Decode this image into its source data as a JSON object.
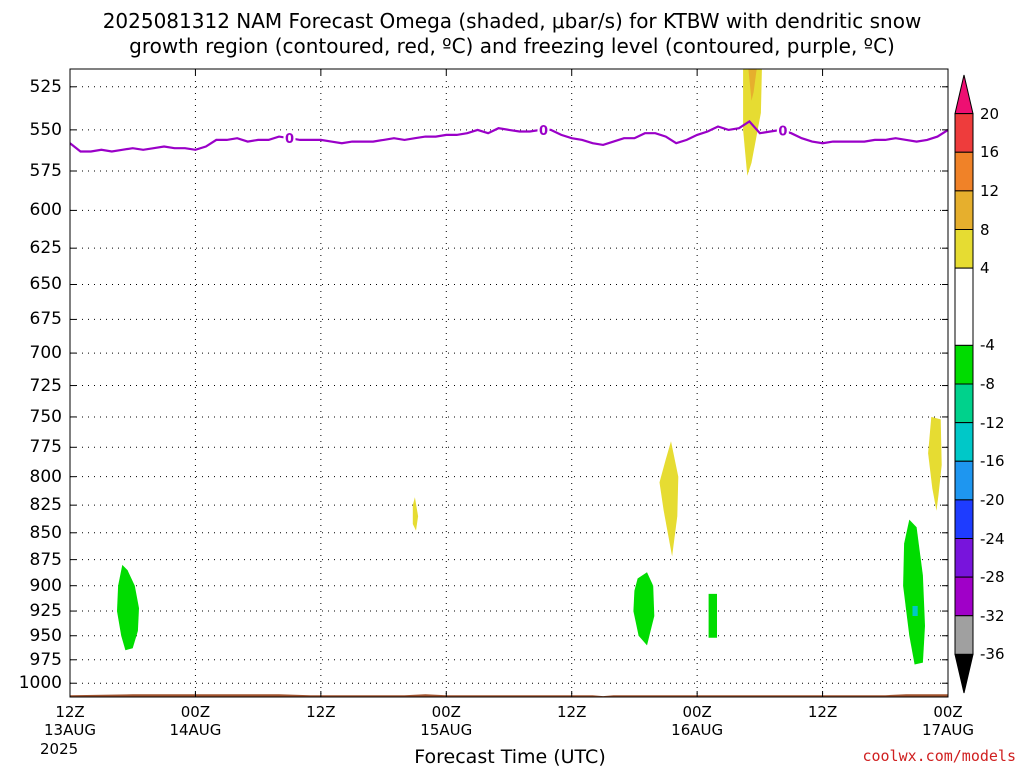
{
  "title": {
    "line1": "2025081312 NAM Forecast Omega (shaded, μbar/s) for KTBW with dendritic snow",
    "line2": "growth region (contoured, red, ºC) and freezing level (contoured, purple, ºC)"
  },
  "chart_data": {
    "type": "heatmap",
    "title": "2025081312 NAM Forecast Omega (shaded, μbar/s) for KTBW with dendritic snow growth region (contoured, red, ºC) and freezing level (contoured, purple, ºC)",
    "xlabel": "Forecast Time (UTC)",
    "x_ticks": [
      {
        "h": 0,
        "top": "12Z",
        "bottom": "13AUG"
      },
      {
        "h": 12,
        "top": "00Z",
        "bottom": "14AUG"
      },
      {
        "h": 24,
        "top": "12Z",
        "bottom": ""
      },
      {
        "h": 36,
        "top": "00Z",
        "bottom": "15AUG"
      },
      {
        "h": 48,
        "top": "12Z",
        "bottom": ""
      },
      {
        "h": 60,
        "top": "00Z",
        "bottom": "16AUG"
      },
      {
        "h": 72,
        "top": "12Z",
        "bottom": ""
      },
      {
        "h": 84,
        "top": "00Z",
        "bottom": "17AUG"
      }
    ],
    "year_label": "2025",
    "xlim": [
      0,
      84
    ],
    "ylabel": "",
    "y_ticks": [
      525,
      550,
      575,
      600,
      625,
      650,
      675,
      700,
      725,
      750,
      775,
      800,
      825,
      850,
      875,
      900,
      925,
      950,
      975,
      1000
    ],
    "ylim": [
      515,
      1015
    ],
    "y_scale": "log",
    "grid": true,
    "colorbar": {
      "labels": [
        "20",
        "16",
        "12",
        "8",
        "4",
        "-4",
        "-8",
        "-12",
        "-16",
        "-20",
        "-24",
        "-28",
        "-32",
        "-36"
      ],
      "bins": [
        {
          "color": "#ee0f72",
          "from": 24,
          "to": 20,
          "shape": "tri-top"
        },
        {
          "color": "#ee3c3c",
          "from": 20,
          "to": 16
        },
        {
          "color": "#f08228",
          "from": 16,
          "to": 12
        },
        {
          "color": "#e6af2d",
          "from": 12,
          "to": 8
        },
        {
          "color": "#e6dc32",
          "from": 8,
          "to": 4
        },
        {
          "color": "#ffffff",
          "from": 4,
          "to": -4
        },
        {
          "color": "#00dc00",
          "from": -4,
          "to": -8
        },
        {
          "color": "#00d28c",
          "from": -8,
          "to": -12
        },
        {
          "color": "#00c8c8",
          "from": -12,
          "to": -16
        },
        {
          "color": "#1e96f0",
          "from": -16,
          "to": -20
        },
        {
          "color": "#1e3cff",
          "from": -20,
          "to": -24
        },
        {
          "color": "#7814dc",
          "from": -24,
          "to": -28
        },
        {
          "color": "#a000c8",
          "from": -28,
          "to": -32
        },
        {
          "color": "#a0a0a0",
          "from": -32,
          "to": -36
        },
        {
          "color": "#000000",
          "from": -36,
          "to": -40,
          "shape": "tri-bottom"
        }
      ]
    },
    "omega_regions": [
      {
        "value": -6,
        "color": "#00dc00",
        "points": [
          [
            5.0,
            880
          ],
          [
            5.5,
            885
          ],
          [
            6.2,
            900
          ],
          [
            6.6,
            922
          ],
          [
            6.5,
            945
          ],
          [
            6.0,
            963
          ],
          [
            5.3,
            965
          ],
          [
            4.9,
            950
          ],
          [
            4.5,
            925
          ],
          [
            4.6,
            900
          ]
        ]
      },
      {
        "value": 5,
        "color": "#e6dc32",
        "points": [
          [
            33.0,
            818
          ],
          [
            33.3,
            835
          ],
          [
            33.1,
            848
          ],
          [
            32.8,
            842
          ],
          [
            32.8,
            825
          ]
        ]
      },
      {
        "value": -6,
        "color": "#00dc00",
        "points": [
          [
            54.3,
            893
          ],
          [
            55.2,
            887
          ],
          [
            55.8,
            900
          ],
          [
            55.9,
            930
          ],
          [
            55.2,
            960
          ],
          [
            54.4,
            950
          ],
          [
            53.9,
            925
          ],
          [
            54.0,
            905
          ]
        ]
      },
      {
        "value": 5,
        "color": "#e6dc32",
        "points": [
          [
            57.5,
            770
          ],
          [
            58.2,
            800
          ],
          [
            58.1,
            835
          ],
          [
            57.6,
            872
          ],
          [
            56.8,
            830
          ],
          [
            56.4,
            805
          ],
          [
            57.0,
            785
          ]
        ]
      },
      {
        "value": -6,
        "color": "#00dc00",
        "points": [
          [
            61.1,
            908
          ],
          [
            61.9,
            908
          ],
          [
            61.9,
            952
          ],
          [
            61.1,
            952
          ]
        ]
      },
      {
        "value": 5,
        "color": "#e6dc32",
        "points": [
          [
            64.4,
            515
          ],
          [
            66.2,
            515
          ],
          [
            66.1,
            540
          ],
          [
            65.2,
            570
          ],
          [
            64.8,
            578
          ],
          [
            64.4,
            550
          ]
        ]
      },
      {
        "value": 10,
        "color": "#e6af2d",
        "points": [
          [
            64.9,
            515
          ],
          [
            65.7,
            515
          ],
          [
            65.4,
            528
          ],
          [
            65.2,
            533
          ]
        ]
      },
      {
        "value": -6,
        "color": "#00dc00",
        "points": [
          [
            80.3,
            838
          ],
          [
            81.0,
            845
          ],
          [
            81.6,
            890
          ],
          [
            81.8,
            940
          ],
          [
            81.6,
            978
          ],
          [
            80.8,
            980
          ],
          [
            80.3,
            950
          ],
          [
            79.7,
            900
          ],
          [
            79.8,
            860
          ]
        ]
      },
      {
        "value": -14,
        "color": "#00c8c8",
        "points": [
          [
            80.6,
            920
          ],
          [
            81.1,
            920
          ],
          [
            81.1,
            930
          ],
          [
            80.6,
            930
          ]
        ]
      },
      {
        "value": 5,
        "color": "#e6dc32",
        "points": [
          [
            82.4,
            750
          ],
          [
            83.3,
            752
          ],
          [
            83.4,
            790
          ],
          [
            83.1,
            815
          ],
          [
            82.9,
            830
          ],
          [
            82.5,
            810
          ],
          [
            82.1,
            780
          ]
        ]
      }
    ],
    "freezing_level": {
      "value": 0,
      "label": "0",
      "label_hours": [
        21,
        45.3,
        68.2
      ],
      "points": [
        [
          0,
          558
        ],
        [
          1,
          563
        ],
        [
          2,
          563
        ],
        [
          3,
          562
        ],
        [
          4,
          563
        ],
        [
          5,
          562
        ],
        [
          6,
          561
        ],
        [
          7,
          562
        ],
        [
          8,
          561
        ],
        [
          9,
          560
        ],
        [
          10,
          561
        ],
        [
          11,
          561
        ],
        [
          12,
          562
        ],
        [
          13,
          560
        ],
        [
          14,
          556
        ],
        [
          15,
          556
        ],
        [
          16,
          555
        ],
        [
          17,
          557
        ],
        [
          18,
          556
        ],
        [
          19,
          556
        ],
        [
          20,
          554
        ],
        [
          21,
          555
        ],
        [
          22,
          556
        ],
        [
          23,
          556
        ],
        [
          24,
          556
        ],
        [
          25,
          557
        ],
        [
          26,
          558
        ],
        [
          27,
          557
        ],
        [
          28,
          557
        ],
        [
          29,
          557
        ],
        [
          30,
          556
        ],
        [
          31,
          555
        ],
        [
          32,
          556
        ],
        [
          33,
          555
        ],
        [
          34,
          554
        ],
        [
          35,
          554
        ],
        [
          36,
          553
        ],
        [
          37,
          553
        ],
        [
          38,
          552
        ],
        [
          39,
          550
        ],
        [
          40,
          552
        ],
        [
          41,
          549
        ],
        [
          42,
          550
        ],
        [
          43,
          551
        ],
        [
          44,
          551
        ],
        [
          45,
          550
        ],
        [
          46,
          550
        ],
        [
          47,
          553
        ],
        [
          48,
          555
        ],
        [
          49,
          556
        ],
        [
          50,
          558
        ],
        [
          51,
          559
        ],
        [
          52,
          557
        ],
        [
          53,
          555
        ],
        [
          54,
          555
        ],
        [
          55,
          552
        ],
        [
          56,
          552
        ],
        [
          57,
          554
        ],
        [
          58,
          558
        ],
        [
          59,
          556
        ],
        [
          60,
          553
        ],
        [
          61,
          551
        ],
        [
          62,
          548
        ],
        [
          63,
          550
        ],
        [
          64,
          549
        ],
        [
          65,
          545
        ],
        [
          66,
          552
        ],
        [
          67,
          551
        ],
        [
          68,
          550
        ],
        [
          69,
          552
        ],
        [
          70,
          555
        ],
        [
          71,
          557
        ],
        [
          72,
          558
        ],
        [
          73,
          557
        ],
        [
          74,
          557
        ],
        [
          75,
          557
        ],
        [
          76,
          557
        ],
        [
          77,
          556
        ],
        [
          78,
          556
        ],
        [
          79,
          555
        ],
        [
          80,
          556
        ],
        [
          81,
          557
        ],
        [
          82,
          556
        ],
        [
          83,
          554
        ],
        [
          84,
          550
        ]
      ]
    },
    "terrain": {
      "color": "#a0522d",
      "base": 1015,
      "top": [
        [
          0,
          1013
        ],
        [
          6,
          1012
        ],
        [
          20,
          1012
        ],
        [
          23,
          1013
        ],
        [
          32,
          1013
        ],
        [
          34,
          1012
        ],
        [
          36,
          1013
        ],
        [
          50,
          1013
        ],
        [
          51,
          1014
        ],
        [
          52,
          1013
        ],
        [
          78,
          1013
        ],
        [
          80,
          1012
        ],
        [
          84,
          1012
        ]
      ]
    }
  },
  "footer": {
    "xlabel": "Forecast Time (UTC)",
    "credit": "coolwx.com/models"
  }
}
